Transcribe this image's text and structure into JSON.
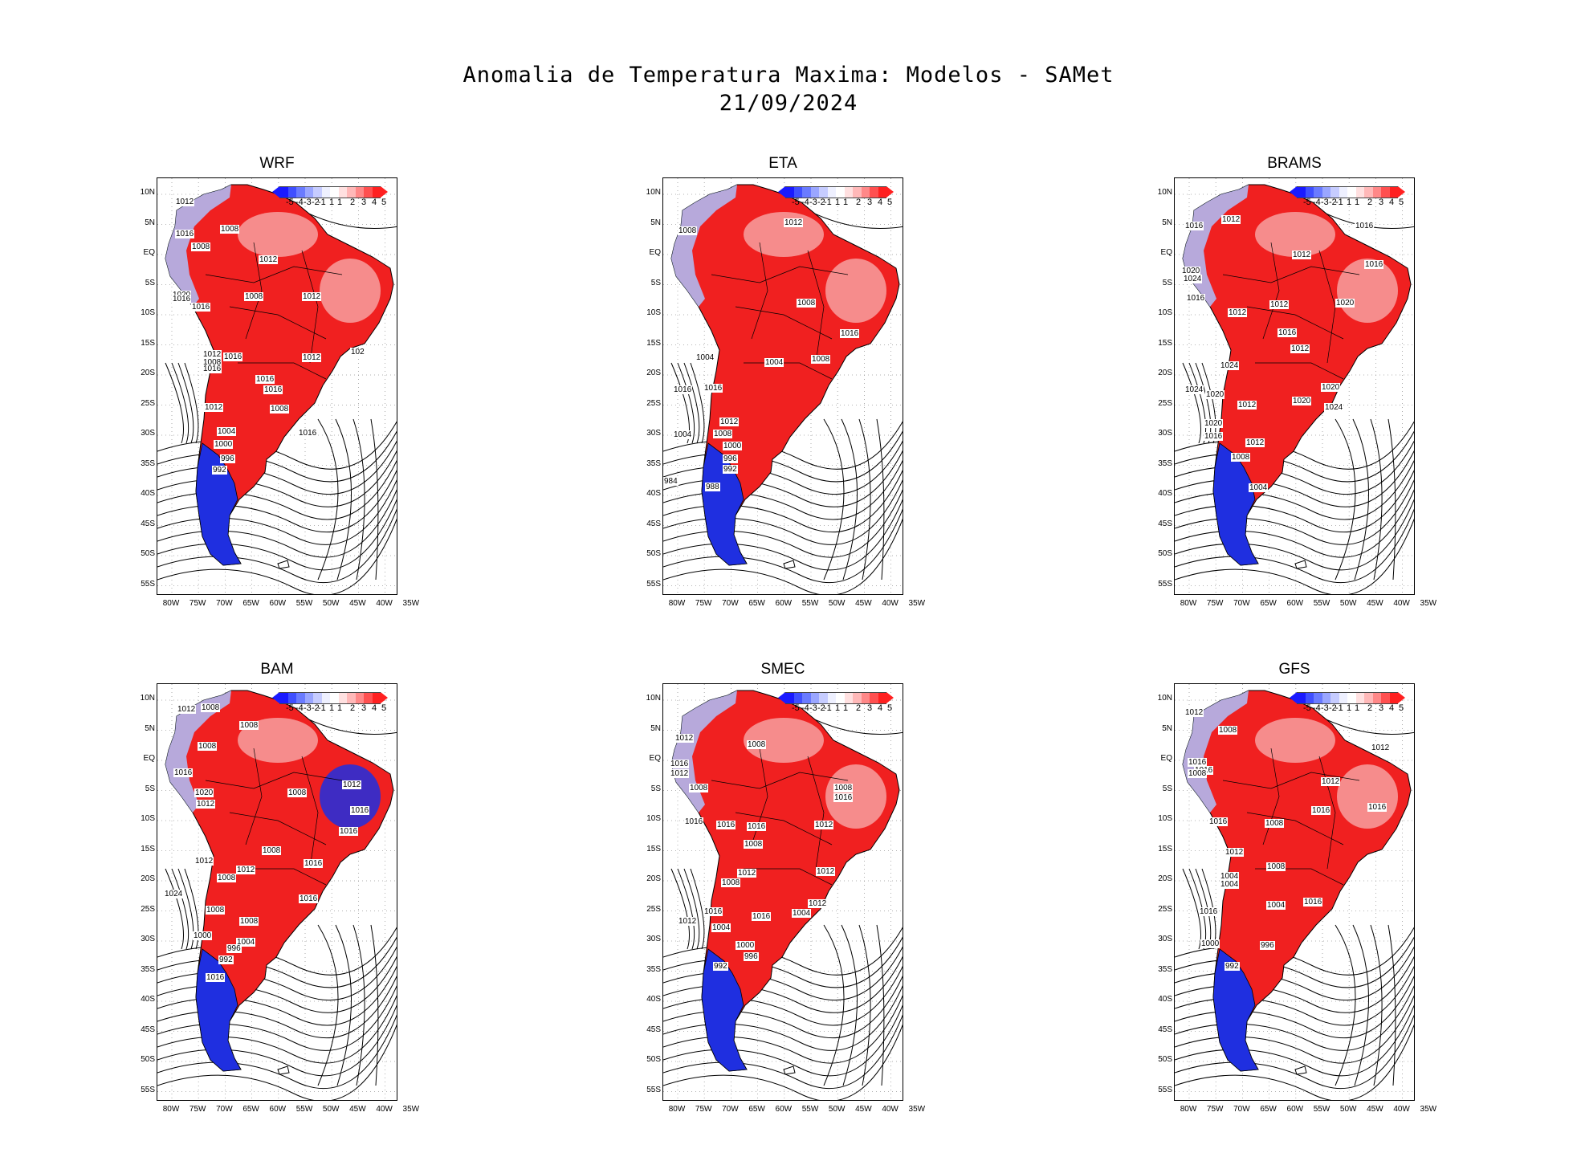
{
  "title": {
    "line1": "Anomalia de Temperatura Maxima: Modelos - SAMet",
    "line2": "21/09/2024"
  },
  "lat_labels": [
    "10N",
    "5N",
    "EQ",
    "5S",
    "10S",
    "15S",
    "20S",
    "25S",
    "30S",
    "35S",
    "40S",
    "45S",
    "50S",
    "55S"
  ],
  "lon_labels": [
    "80W",
    "75W",
    "70W",
    "65W",
    "60W",
    "55W",
    "50W",
    "45W",
    "40W",
    "35W"
  ],
  "colorbar": {
    "labels": [
      "-5",
      "-4",
      "-3",
      "-2",
      "-1",
      "1",
      "1",
      "2",
      "3",
      "4",
      "5"
    ],
    "colors": [
      "#1a1aff",
      "#3f4fff",
      "#6a7bff",
      "#9aa6ff",
      "#c6ccff",
      "#eef0ff",
      "#ffffff",
      "#ffe0e0",
      "#ffb8b8",
      "#ff8888",
      "#ff5050",
      "#ff2020"
    ]
  },
  "colors": {
    "warm": "#f02020",
    "warm_light": "#f7a0a0",
    "cold": "#1f2fe0",
    "cold_light": "#b0b8f0"
  },
  "panels": [
    {
      "name": "WRF",
      "isobars": [
        "1012",
        "1016",
        "1008",
        "1008",
        "1012",
        "1012",
        "1008",
        "1016",
        "1020",
        "1016",
        "1012",
        "1008",
        "1016",
        "1016",
        "1016",
        "1012",
        "102",
        "1008",
        "1012",
        "1016",
        "1016",
        "1004",
        "1000",
        "996",
        "992"
      ]
    },
    {
      "name": "ETA",
      "isobars": [
        "1008",
        "1012",
        "1008",
        "1008",
        "1016",
        "1016",
        "1004",
        "1004",
        "1016",
        "1012",
        "1008",
        "1004",
        "1000",
        "996",
        "992",
        "984",
        "988"
      ]
    },
    {
      "name": "BRAMS",
      "isobars": [
        "1016",
        "1012",
        "1016",
        "1012",
        "1020",
        "1024",
        "1016",
        "1016",
        "1012",
        "1012",
        "1016",
        "1020",
        "1012",
        "1024",
        "1024",
        "1020",
        "1020",
        "1020",
        "1024",
        "1012",
        "1020",
        "1016",
        "1012",
        "1008",
        "1004"
      ]
    },
    {
      "name": "BAM",
      "isobars": [
        "1012",
        "1008",
        "1008",
        "1008",
        "1016",
        "1012",
        "1008",
        "1016",
        "1020",
        "1012",
        "1016",
        "1008",
        "1012",
        "1016",
        "1012",
        "1008",
        "1016",
        "1024",
        "1008",
        "1008",
        "1004",
        "1000",
        "996",
        "992",
        "1016"
      ]
    },
    {
      "name": "SMEC",
      "isobars": [
        "1012",
        "1008",
        "1016",
        "1012",
        "1008",
        "1008",
        "1012",
        "1016",
        "1016",
        "1016",
        "1008",
        "1012",
        "1012",
        "1008",
        "1012",
        "1004",
        "1016",
        "1016",
        "1012",
        "1004",
        "1000",
        "996",
        "992",
        "1016"
      ]
    },
    {
      "name": "GFS",
      "isobars": [
        "1012",
        "1008",
        "1012",
        "1016",
        "1016",
        "1008",
        "1012",
        "1016",
        "1008",
        "1016",
        "1016",
        "1012",
        "1008",
        "1004",
        "1004",
        "1016",
        "1016",
        "1004",
        "1000",
        "996",
        "992"
      ]
    }
  ]
}
